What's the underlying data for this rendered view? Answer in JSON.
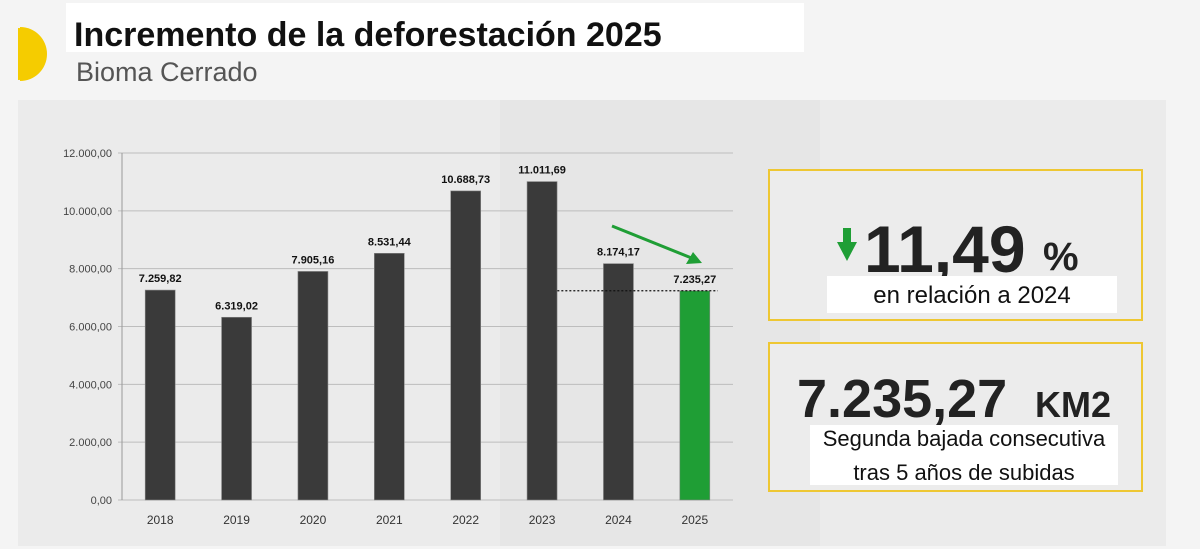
{
  "chart_data": {
    "type": "bar",
    "title": "Incremento de la deforestación 2025",
    "subtitle": "Bioma Cerrado",
    "categories": [
      "2018",
      "2019",
      "2020",
      "2021",
      "2022",
      "2023",
      "2024",
      "2025"
    ],
    "values": [
      7259.82,
      6319.02,
      7905.16,
      8531.44,
      10688.73,
      11011.69,
      8174.17,
      7235.27
    ],
    "value_labels": [
      "7.259,82",
      "6.319,02",
      "7.905,16",
      "8.531,44",
      "10.688,73",
      "11.011,69",
      "8.174,17",
      "7.235,27"
    ],
    "colors": [
      "#3a3a3a",
      "#3a3a3a",
      "#3a3a3a",
      "#3a3a3a",
      "#3a3a3a",
      "#3a3a3a",
      "#3a3a3a",
      "#1f9e35"
    ],
    "ylim": [
      0,
      12000
    ],
    "yticks": [
      {
        "value": 0,
        "label": "0,00"
      },
      {
        "value": 2000,
        "label": "2.000,00"
      },
      {
        "value": 4000,
        "label": "4.000,00"
      },
      {
        "value": 6000,
        "label": "6.000,00"
      },
      {
        "value": 8000,
        "label": "8.000,00"
      },
      {
        "value": 10000,
        "label": "10.000,00"
      },
      {
        "value": 12000,
        "label": "12.000,00"
      }
    ],
    "grid": true
  },
  "highlights": {
    "change": {
      "value": "11,49",
      "unit": "%",
      "caption": "en relación a 2024"
    },
    "area": {
      "value": "7.235,27",
      "unit": "KM2",
      "caption_lines": [
        "Segunda bajada consecutiva",
        "tras 5 años de subidas"
      ]
    }
  }
}
